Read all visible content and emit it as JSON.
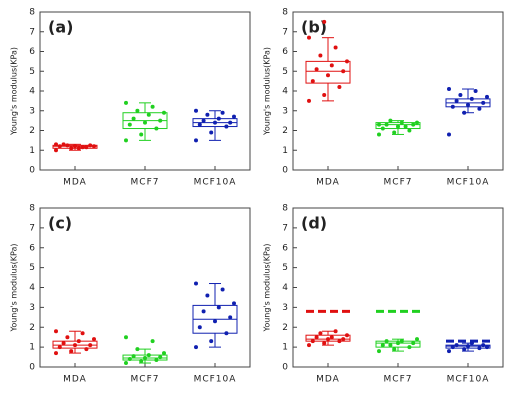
{
  "chart_data": [
    {
      "type": "box",
      "title": "(a)",
      "y_label": "Young's modulus(KPa)",
      "categories": [
        "MDA",
        "MCF7",
        "MCF10A"
      ],
      "colors": [
        "#e01010",
        "#20d020",
        "#1020b0"
      ],
      "ylim": [
        0,
        8
      ],
      "yticks": [
        0,
        1,
        2,
        3,
        4,
        5,
        6,
        7,
        8
      ],
      "boxes": [
        {
          "min": 1.0,
          "q1": 1.1,
          "median": 1.2,
          "q3": 1.25,
          "max": 1.3
        },
        {
          "min": 1.5,
          "q1": 2.1,
          "median": 2.5,
          "q3": 2.9,
          "max": 3.4
        },
        {
          "min": 1.5,
          "q1": 2.2,
          "median": 2.4,
          "q3": 2.6,
          "max": 3.0
        }
      ],
      "points": [
        [
          1.0,
          1.1,
          1.15,
          1.2,
          1.2,
          1.25,
          1.3,
          1.1,
          1.2,
          1.25,
          1.15,
          1.3
        ],
        [
          1.5,
          1.8,
          2.1,
          2.3,
          2.4,
          2.5,
          2.6,
          2.8,
          2.9,
          3.0,
          3.2,
          3.4
        ],
        [
          1.5,
          1.9,
          2.2,
          2.3,
          2.4,
          2.4,
          2.5,
          2.6,
          2.7,
          2.8,
          2.9,
          3.0
        ]
      ]
    },
    {
      "type": "box",
      "title": "(b)",
      "y_label": "Young's modulus(KPa)",
      "categories": [
        "MDA",
        "MCF7",
        "MCF10A"
      ],
      "colors": [
        "#e01010",
        "#20d020",
        "#1020b0"
      ],
      "ylim": [
        0,
        8
      ],
      "yticks": [
        0,
        1,
        2,
        3,
        4,
        5,
        6,
        7,
        8
      ],
      "boxes": [
        {
          "min": 3.5,
          "q1": 4.4,
          "median": 5.0,
          "q3": 5.5,
          "max": 6.7
        },
        {
          "min": 1.8,
          "q1": 2.1,
          "median": 2.3,
          "q3": 2.4,
          "max": 2.5
        },
        {
          "min": 2.9,
          "q1": 3.2,
          "median": 3.4,
          "q3": 3.6,
          "max": 4.1
        }
      ],
      "points": [
        [
          3.5,
          3.8,
          4.2,
          4.5,
          4.8,
          5.0,
          5.1,
          5.3,
          5.5,
          5.8,
          6.2,
          6.7,
          7.5
        ],
        [
          1.8,
          1.9,
          2.0,
          2.1,
          2.2,
          2.3,
          2.3,
          2.4,
          2.4,
          2.5,
          2.2,
          2.3
        ],
        [
          1.8,
          2.9,
          3.1,
          3.2,
          3.3,
          3.4,
          3.5,
          3.6,
          3.7,
          3.8,
          4.0,
          4.1
        ]
      ]
    },
    {
      "type": "box",
      "title": "(c)",
      "y_label": "Young's modulus(KPa)",
      "categories": [
        "MDA",
        "MCF7",
        "MCF10A"
      ],
      "colors": [
        "#e01010",
        "#20d020",
        "#1020b0"
      ],
      "ylim": [
        0,
        8
      ],
      "yticks": [
        0,
        1,
        2,
        3,
        4,
        5,
        6,
        7,
        8
      ],
      "boxes": [
        {
          "min": 0.7,
          "q1": 0.95,
          "median": 1.1,
          "q3": 1.3,
          "max": 1.8
        },
        {
          "min": 0.2,
          "q1": 0.35,
          "median": 0.45,
          "q3": 0.6,
          "max": 0.9
        },
        {
          "min": 1.0,
          "q1": 1.7,
          "median": 2.4,
          "q3": 3.1,
          "max": 4.2
        }
      ],
      "points": [
        [
          0.7,
          0.8,
          0.9,
          1.0,
          1.1,
          1.1,
          1.2,
          1.3,
          1.4,
          1.5,
          1.7,
          1.8
        ],
        [
          0.2,
          0.3,
          0.35,
          0.4,
          0.45,
          0.5,
          0.55,
          0.6,
          0.7,
          0.9,
          1.3,
          1.5
        ],
        [
          1.0,
          1.3,
          1.7,
          2.0,
          2.3,
          2.5,
          2.8,
          3.0,
          3.2,
          3.6,
          3.9,
          4.2
        ]
      ]
    },
    {
      "type": "box",
      "title": "(d)",
      "y_label": "Young's modulus(KPa)",
      "categories": [
        "MDA",
        "MCF7",
        "MCF10A"
      ],
      "colors": [
        "#e01010",
        "#20d020",
        "#1020b0"
      ],
      "ylim": [
        0,
        8
      ],
      "yticks": [
        0,
        1,
        2,
        3,
        4,
        5,
        6,
        7,
        8
      ],
      "boxes": [
        {
          "min": 1.1,
          "q1": 1.3,
          "median": 1.4,
          "q3": 1.6,
          "max": 1.8
        },
        {
          "min": 0.8,
          "q1": 1.0,
          "median": 1.2,
          "q3": 1.3,
          "max": 1.4
        },
        {
          "min": 0.8,
          "q1": 0.95,
          "median": 1.05,
          "q3": 1.1,
          "max": 1.2
        }
      ],
      "points": [
        [
          1.1,
          1.2,
          1.3,
          1.3,
          1.4,
          1.4,
          1.5,
          1.5,
          1.6,
          1.7,
          1.8
        ],
        [
          0.8,
          0.9,
          1.0,
          1.1,
          1.2,
          1.2,
          1.3,
          1.3,
          1.4,
          1.1
        ],
        [
          0.8,
          0.9,
          0.95,
          1.0,
          1.05,
          1.1,
          1.1,
          1.2,
          1.0
        ]
      ],
      "references": [
        2.8,
        2.8,
        1.3
      ]
    }
  ]
}
